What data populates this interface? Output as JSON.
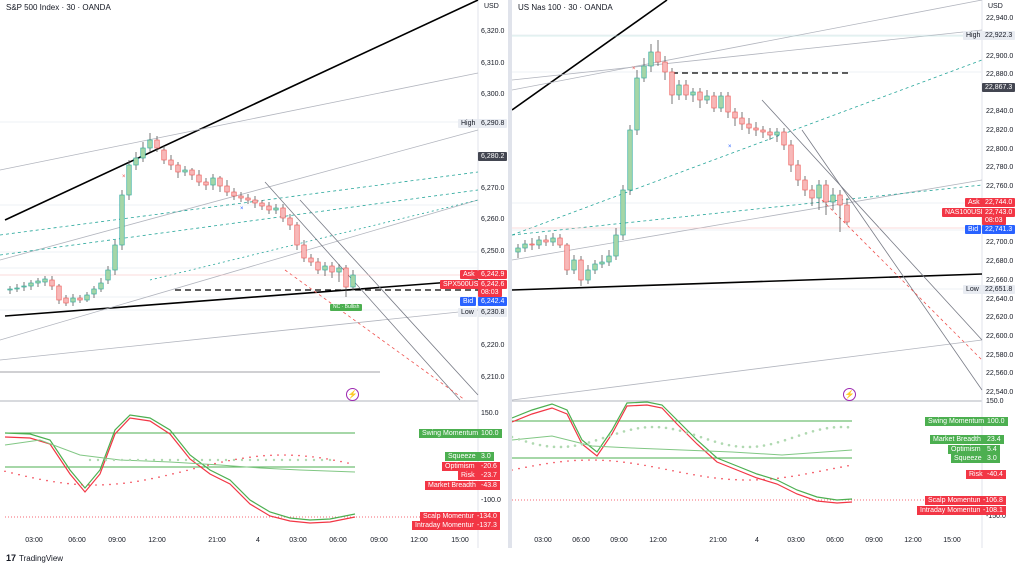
{
  "footer": {
    "brand": "TradingView",
    "logo_text": "17"
  },
  "colors": {
    "bull": "#a5d6a7",
    "bull_border": "#26a69a",
    "bear": "#f7b8b8",
    "bear_border": "#ef5350",
    "red": "#f23645",
    "blue": "#2962ff",
    "green": "#4caf50",
    "dark": "#434651"
  },
  "left": {
    "title": "S&P 500 Index · 30 · OANDA",
    "currency": "USD",
    "price_ticks": [
      "6,320.0",
      "6,310.0",
      "6,300.0",
      "6,280.2",
      "6,270.0",
      "6,260.0",
      "6,250.0",
      "6,220.0",
      "6,210.0"
    ],
    "labels": {
      "high": "High",
      "high_value": "6,290.8",
      "current_value": "6,280.2",
      "ask": "Ask",
      "ask_value": "6,242.9",
      "symbol": "SPX500USD",
      "symbol_value": "6,242.6",
      "countdown": "08:03",
      "bid": "Bid",
      "bid_value": "6,242.4",
      "low": "Low",
      "low_value": "6,230.8"
    },
    "pill_text": "NC · Bullish",
    "indicator": {
      "axis_top": "150.0",
      "axis_bottom": "-100.0",
      "tags": [
        {
          "name": "Swing Momentum",
          "value": "100.0",
          "color": "green"
        },
        {
          "name": "Squeeze",
          "value": "3.0",
          "color": "green"
        },
        {
          "name": "Optimism",
          "value": "-20.6",
          "color": "red"
        },
        {
          "name": "Risk",
          "value": "-23.7",
          "color": "red"
        },
        {
          "name": "Market Breadth",
          "value": "-43.8",
          "color": "red"
        },
        {
          "name": "Scalp Momentum",
          "value": "-134.0",
          "color": "red"
        },
        {
          "name": "Intraday Momentum",
          "value": "-137.3",
          "color": "red"
        }
      ]
    },
    "time_ticks": [
      "03:00",
      "06:00",
      "09:00",
      "12:00",
      "21:00",
      "4",
      "03:00",
      "06:00",
      "09:00",
      "12:00",
      "15:00"
    ]
  },
  "right": {
    "title": "US Nas 100 · 30 · OANDA",
    "currency": "USD",
    "price_ticks": [
      "22,940.0",
      "22,920.0",
      "22,900.0",
      "22,880.0",
      "22,860.0",
      "22,840.0",
      "22,820.0",
      "22,800.0",
      "22,780.0",
      "22,760.0",
      "22,700.0",
      "22,680.0",
      "22,660.0",
      "22,640.0",
      "22,620.0",
      "22,600.0",
      "22,580.0",
      "22,560.0",
      "22,540.0"
    ],
    "labels": {
      "high": "High",
      "high_value": "22,922.3",
      "current_value": "22,867.3",
      "ask": "Ask",
      "ask_value": "22,744.0",
      "symbol": "NAS100USD",
      "symbol_value": "22,743.0",
      "countdown": "08:03",
      "bid": "Bid",
      "bid_value": "22,741.3",
      "low": "Low",
      "low_value": "22,651.8"
    },
    "indicator": {
      "axis_top": "150.0",
      "axis_bottom": "-150.0",
      "tags": [
        {
          "name": "Swing Momentum",
          "value": "100.0",
          "color": "green"
        },
        {
          "name": "Market Breadth",
          "value": "23.4",
          "color": "green"
        },
        {
          "name": "Optimism",
          "value": "5.4",
          "color": "green"
        },
        {
          "name": "Squeeze",
          "value": "3.0",
          "color": "green"
        },
        {
          "name": "Risk",
          "value": "-40.4",
          "color": "red"
        },
        {
          "name": "Scalp Momentum",
          "value": "-106.8",
          "color": "red"
        },
        {
          "name": "Intraday Momentum",
          "value": "-108.1",
          "color": "red"
        }
      ]
    },
    "time_ticks": [
      "03:00",
      "06:00",
      "09:00",
      "12:00",
      "21:00",
      "4",
      "03:00",
      "06:00",
      "09:00",
      "12:00",
      "15:00"
    ]
  }
}
